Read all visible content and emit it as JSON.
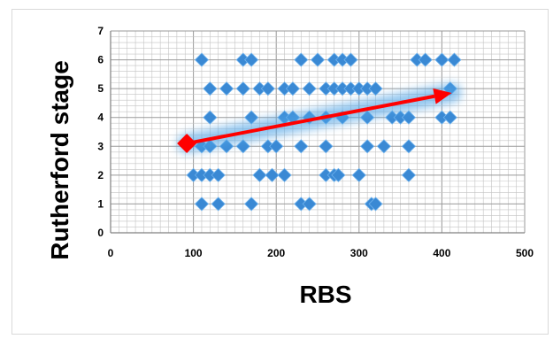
{
  "chart_data": {
    "type": "scatter",
    "title": "",
    "xlabel": "RBS",
    "ylabel": "Rutherford stage",
    "xlim": [
      0,
      500
    ],
    "ylim": [
      0,
      7
    ],
    "xticks": [
      0,
      100,
      200,
      300,
      400,
      500
    ],
    "yticks": [
      0,
      1,
      2,
      3,
      4,
      5,
      6,
      7
    ],
    "grid": "major and minor",
    "legend": "none",
    "series": [
      {
        "marker": "diamond",
        "color": "#3a89d4",
        "points": [
          [
            110,
            6
          ],
          [
            160,
            6
          ],
          [
            170,
            6
          ],
          [
            230,
            6
          ],
          [
            250,
            6
          ],
          [
            270,
            6
          ],
          [
            280,
            6
          ],
          [
            290,
            6
          ],
          [
            370,
            6
          ],
          [
            380,
            6
          ],
          [
            400,
            6
          ],
          [
            415,
            6
          ],
          [
            120,
            5
          ],
          [
            140,
            5
          ],
          [
            160,
            5
          ],
          [
            180,
            5
          ],
          [
            190,
            5
          ],
          [
            210,
            5
          ],
          [
            220,
            5
          ],
          [
            240,
            5
          ],
          [
            260,
            5
          ],
          [
            270,
            5
          ],
          [
            280,
            5
          ],
          [
            290,
            5
          ],
          [
            300,
            5
          ],
          [
            310,
            5
          ],
          [
            320,
            5
          ],
          [
            410,
            5
          ],
          [
            120,
            4
          ],
          [
            170,
            4
          ],
          [
            210,
            4
          ],
          [
            220,
            4
          ],
          [
            240,
            4
          ],
          [
            260,
            4
          ],
          [
            280,
            4
          ],
          [
            310,
            4
          ],
          [
            340,
            4
          ],
          [
            350,
            4
          ],
          [
            360,
            4
          ],
          [
            400,
            4
          ],
          [
            410,
            4
          ],
          [
            110,
            3
          ],
          [
            120,
            3
          ],
          [
            140,
            3
          ],
          [
            160,
            3
          ],
          [
            190,
            3
          ],
          [
            200,
            3
          ],
          [
            230,
            3
          ],
          [
            260,
            3
          ],
          [
            310,
            3
          ],
          [
            330,
            3
          ],
          [
            360,
            3
          ],
          [
            100,
            2
          ],
          [
            110,
            2
          ],
          [
            120,
            2
          ],
          [
            130,
            2
          ],
          [
            180,
            2
          ],
          [
            195,
            2
          ],
          [
            210,
            2
          ],
          [
            260,
            2
          ],
          [
            270,
            2
          ],
          [
            275,
            2
          ],
          [
            300,
            2
          ],
          [
            360,
            2
          ],
          [
            110,
            1
          ],
          [
            130,
            1
          ],
          [
            170,
            1
          ],
          [
            230,
            1
          ],
          [
            240,
            1
          ],
          [
            315,
            1
          ],
          [
            320,
            1
          ]
        ]
      }
    ],
    "annotations": [
      {
        "type": "arrow",
        "from": [
          92,
          3.1
        ],
        "to": [
          412,
          4.85
        ],
        "color": "#ff0000",
        "glow": "#4da3e6",
        "start_marker": "diamond"
      }
    ]
  }
}
